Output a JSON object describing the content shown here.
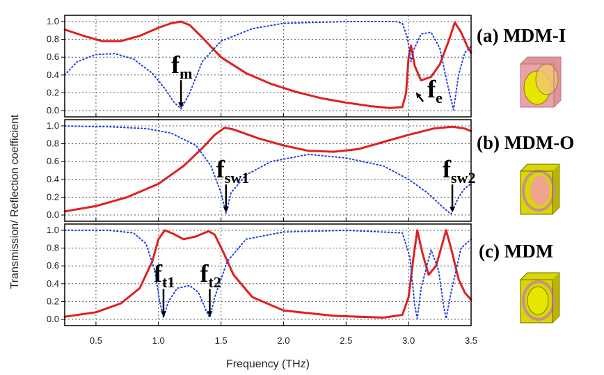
{
  "chart_data": [
    {
      "type": "line",
      "panel": "a",
      "ylabel": "Transmission/ Reflection coefficient",
      "xlabel": "Frequency (THz)",
      "xlim": [
        0.25,
        3.5
      ],
      "ylim": [
        -0.07,
        1.07
      ],
      "xticks": [
        "0.5",
        "1.0",
        "1.5",
        "2.0",
        "2.5",
        "3.0",
        "3.5"
      ],
      "yticks": [
        "0.0",
        "0.2",
        "0.4",
        "0.6",
        "0.8",
        "1.0"
      ],
      "grid": true,
      "series": [
        {
          "style": "solid",
          "color": "#e02020",
          "points": [
            [
              0.25,
              0.91
            ],
            [
              0.4,
              0.84
            ],
            [
              0.55,
              0.78
            ],
            [
              0.7,
              0.78
            ],
            [
              0.85,
              0.84
            ],
            [
              1.0,
              0.93
            ],
            [
              1.1,
              0.98
            ],
            [
              1.18,
              1.0
            ],
            [
              1.25,
              0.96
            ],
            [
              1.35,
              0.82
            ],
            [
              1.5,
              0.6
            ],
            [
              1.7,
              0.42
            ],
            [
              1.9,
              0.3
            ],
            [
              2.1,
              0.21
            ],
            [
              2.3,
              0.14
            ],
            [
              2.5,
              0.09
            ],
            [
              2.7,
              0.05
            ],
            [
              2.85,
              0.03
            ],
            [
              2.95,
              0.04
            ],
            [
              2.98,
              0.2
            ],
            [
              3.0,
              0.6
            ],
            [
              3.02,
              0.73
            ],
            [
              3.05,
              0.5
            ],
            [
              3.1,
              0.34
            ],
            [
              3.18,
              0.38
            ],
            [
              3.25,
              0.52
            ],
            [
              3.32,
              0.78
            ],
            [
              3.37,
              0.99
            ],
            [
              3.42,
              0.88
            ],
            [
              3.47,
              0.72
            ],
            [
              3.5,
              0.65
            ]
          ]
        },
        {
          "style": "dotted",
          "color": "#2040e0",
          "points": [
            [
              0.25,
              0.4
            ],
            [
              0.35,
              0.55
            ],
            [
              0.5,
              0.63
            ],
            [
              0.65,
              0.64
            ],
            [
              0.8,
              0.58
            ],
            [
              0.95,
              0.42
            ],
            [
              1.05,
              0.25
            ],
            [
              1.12,
              0.1
            ],
            [
              1.18,
              0.02
            ],
            [
              1.25,
              0.2
            ],
            [
              1.35,
              0.55
            ],
            [
              1.5,
              0.78
            ],
            [
              1.75,
              0.92
            ],
            [
              2.0,
              0.98
            ],
            [
              2.5,
              1.0
            ],
            [
              2.9,
              1.0
            ],
            [
              2.95,
              0.98
            ],
            [
              2.99,
              0.82
            ],
            [
              3.02,
              0.55
            ],
            [
              3.04,
              0.68
            ],
            [
              3.1,
              0.86
            ],
            [
              3.18,
              0.88
            ],
            [
              3.25,
              0.7
            ],
            [
              3.31,
              0.3
            ],
            [
              3.36,
              0.01
            ],
            [
              3.4,
              0.4
            ],
            [
              3.45,
              0.65
            ],
            [
              3.5,
              0.72
            ]
          ]
        }
      ],
      "annotations": [
        {
          "base": "f",
          "sub": "m",
          "x": 1.18,
          "arrow_to_y": 0.03
        },
        {
          "base": "f",
          "sub": "e",
          "x": 3.05
        }
      ]
    },
    {
      "type": "line",
      "panel": "b",
      "xlim": [
        0.25,
        3.5
      ],
      "ylim": [
        -0.07,
        1.07
      ],
      "xticks": [
        "0.5",
        "1.0",
        "1.5",
        "2.0",
        "2.5",
        "3.0",
        "3.5"
      ],
      "yticks": [
        "0.0",
        "0.2",
        "0.4",
        "0.6",
        "0.8",
        "1.0"
      ],
      "grid": true,
      "series": [
        {
          "style": "solid",
          "color": "#e02020",
          "points": [
            [
              0.25,
              0.04
            ],
            [
              0.5,
              0.1
            ],
            [
              0.75,
              0.2
            ],
            [
              1.0,
              0.35
            ],
            [
              1.2,
              0.55
            ],
            [
              1.35,
              0.75
            ],
            [
              1.45,
              0.9
            ],
            [
              1.53,
              0.98
            ],
            [
              1.6,
              0.96
            ],
            [
              1.8,
              0.86
            ],
            [
              2.0,
              0.78
            ],
            [
              2.2,
              0.72
            ],
            [
              2.4,
              0.71
            ],
            [
              2.6,
              0.74
            ],
            [
              2.8,
              0.82
            ],
            [
              3.0,
              0.9
            ],
            [
              3.2,
              0.97
            ],
            [
              3.35,
              0.99
            ],
            [
              3.45,
              0.97
            ],
            [
              3.5,
              0.94
            ]
          ]
        },
        {
          "style": "dotted",
          "color": "#2040e0",
          "points": [
            [
              0.25,
              1.0
            ],
            [
              0.6,
              0.99
            ],
            [
              0.9,
              0.97
            ],
            [
              1.1,
              0.92
            ],
            [
              1.3,
              0.78
            ],
            [
              1.42,
              0.55
            ],
            [
              1.5,
              0.25
            ],
            [
              1.54,
              0.02
            ],
            [
              1.58,
              0.25
            ],
            [
              1.7,
              0.45
            ],
            [
              1.9,
              0.6
            ],
            [
              2.2,
              0.68
            ],
            [
              2.5,
              0.64
            ],
            [
              2.8,
              0.55
            ],
            [
              3.0,
              0.4
            ],
            [
              3.15,
              0.25
            ],
            [
              3.28,
              0.08
            ],
            [
              3.34,
              0.01
            ],
            [
              3.4,
              0.2
            ],
            [
              3.45,
              0.3
            ],
            [
              3.5,
              0.35
            ]
          ]
        }
      ],
      "annotations": [
        {
          "base": "f",
          "sub": "sw1",
          "x": 1.54,
          "arrow_to_y": 0.03
        },
        {
          "base": "f",
          "sub": "sw2",
          "x": 3.35,
          "arrow_to_y": 0.03
        }
      ]
    },
    {
      "type": "line",
      "panel": "c",
      "xlim": [
        0.25,
        3.5
      ],
      "ylim": [
        -0.07,
        1.07
      ],
      "xticks": [
        "0.5",
        "1.0",
        "1.5",
        "2.0",
        "2.5",
        "3.0",
        "3.5"
      ],
      "yticks": [
        "0.0",
        "0.2",
        "0.4",
        "0.6",
        "0.8",
        "1.0"
      ],
      "grid": true,
      "series": [
        {
          "style": "solid",
          "color": "#e02020",
          "points": [
            [
              0.25,
              0.03
            ],
            [
              0.5,
              0.08
            ],
            [
              0.7,
              0.18
            ],
            [
              0.85,
              0.35
            ],
            [
              0.95,
              0.65
            ],
            [
              1.0,
              0.9
            ],
            [
              1.05,
              1.0
            ],
            [
              1.12,
              0.96
            ],
            [
              1.2,
              0.9
            ],
            [
              1.3,
              0.93
            ],
            [
              1.4,
              0.99
            ],
            [
              1.45,
              0.95
            ],
            [
              1.52,
              0.75
            ],
            [
              1.6,
              0.5
            ],
            [
              1.75,
              0.25
            ],
            [
              2.0,
              0.1
            ],
            [
              2.4,
              0.04
            ],
            [
              2.8,
              0.02
            ],
            [
              2.95,
              0.05
            ],
            [
              3.0,
              0.25
            ],
            [
              3.04,
              0.7
            ],
            [
              3.07,
              1.0
            ],
            [
              3.11,
              0.75
            ],
            [
              3.16,
              0.5
            ],
            [
              3.22,
              0.6
            ],
            [
              3.27,
              0.85
            ],
            [
              3.3,
              1.0
            ],
            [
              3.34,
              0.8
            ],
            [
              3.4,
              0.45
            ],
            [
              3.45,
              0.3
            ],
            [
              3.5,
              0.22
            ]
          ]
        },
        {
          "style": "dotted",
          "color": "#2040e0",
          "points": [
            [
              0.25,
              1.0
            ],
            [
              0.6,
              1.0
            ],
            [
              0.8,
              0.97
            ],
            [
              0.9,
              0.85
            ],
            [
              0.97,
              0.55
            ],
            [
              1.01,
              0.2
            ],
            [
              1.04,
              0.02
            ],
            [
              1.08,
              0.2
            ],
            [
              1.15,
              0.35
            ],
            [
              1.25,
              0.38
            ],
            [
              1.32,
              0.3
            ],
            [
              1.38,
              0.1
            ],
            [
              1.41,
              0.02
            ],
            [
              1.45,
              0.25
            ],
            [
              1.55,
              0.65
            ],
            [
              1.7,
              0.9
            ],
            [
              2.0,
              0.98
            ],
            [
              2.5,
              1.0
            ],
            [
              2.95,
              0.97
            ],
            [
              3.01,
              0.7
            ],
            [
              3.05,
              0.15
            ],
            [
              3.07,
              0.01
            ],
            [
              3.1,
              0.35
            ],
            [
              3.18,
              0.78
            ],
            [
              3.24,
              0.55
            ],
            [
              3.28,
              0.15
            ],
            [
              3.3,
              0.01
            ],
            [
              3.34,
              0.3
            ],
            [
              3.42,
              0.8
            ],
            [
              3.5,
              0.9
            ]
          ]
        }
      ],
      "annotations": [
        {
          "base": "f",
          "sub": "t1",
          "x": 1.04,
          "arrow_to_y": 0.03
        },
        {
          "base": "f",
          "sub": "t2",
          "x": 1.41,
          "arrow_to_y": 0.03
        }
      ]
    }
  ],
  "captions": [
    "(a) MDM-I",
    "(b) MDM-O",
    "(c) MDM"
  ],
  "icons": [
    "cube-mdm-i-icon",
    "cube-mdm-o-icon",
    "cube-mdm-icon"
  ]
}
